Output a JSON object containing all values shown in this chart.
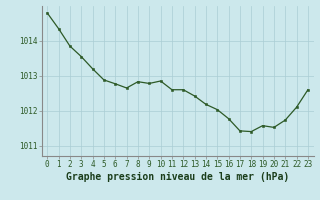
{
  "x": [
    0,
    1,
    2,
    3,
    4,
    5,
    6,
    7,
    8,
    9,
    10,
    11,
    12,
    13,
    14,
    15,
    16,
    17,
    18,
    19,
    20,
    21,
    22,
    23
  ],
  "y": [
    1014.8,
    1014.35,
    1013.85,
    1013.55,
    1013.2,
    1012.88,
    1012.77,
    1012.65,
    1012.83,
    1012.78,
    1012.85,
    1012.6,
    1012.6,
    1012.42,
    1012.18,
    1012.03,
    1011.77,
    1011.42,
    1011.4,
    1011.57,
    1011.52,
    1011.73,
    1012.1,
    1012.6
  ],
  "line_color": "#2d5a27",
  "marker_color": "#2d5a27",
  "bg_color": "#cce8ec",
  "grid_color": "#aacdd4",
  "title": "Graphe pression niveau de la mer (hPa)",
  "title_color": "#1a3d1a",
  "yticks": [
    1011,
    1012,
    1013,
    1014
  ],
  "xtick_labels": [
    "0",
    "1",
    "2",
    "3",
    "4",
    "5",
    "6",
    "7",
    "8",
    "9",
    "10",
    "11",
    "12",
    "13",
    "14",
    "15",
    "16",
    "17",
    "18",
    "19",
    "20",
    "21",
    "22",
    "23"
  ],
  "ylim": [
    1010.7,
    1015.0
  ],
  "xlim": [
    -0.5,
    23.5
  ],
  "tick_color": "#2d5a27",
  "spine_color": "#888888",
  "title_fontsize": 7.0,
  "tick_fontsize": 5.5,
  "linewidth": 0.9,
  "markersize": 2.0
}
